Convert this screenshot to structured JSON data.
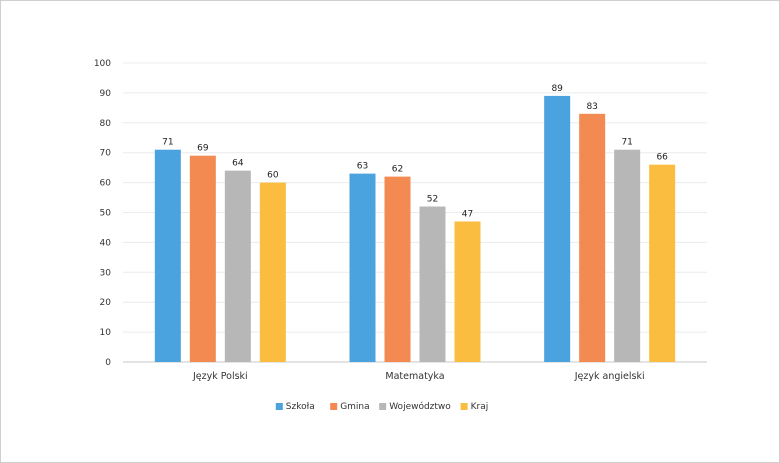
{
  "chart_data": {
    "type": "bar",
    "categories": [
      "Język Polski",
      "Matematyka",
      "Język angielski"
    ],
    "series": [
      {
        "name": "Szkoła",
        "values": [
          71,
          63,
          89
        ],
        "color": "#4aa3df"
      },
      {
        "name": "Gmina",
        "values": [
          69,
          62,
          83
        ],
        "color": "#f28a52"
      },
      {
        "name": "Województwo",
        "values": [
          64,
          52,
          71
        ],
        "color": "#b7b7b7"
      },
      {
        "name": "Kraj",
        "values": [
          60,
          47,
          66
        ],
        "color": "#fbbd3f"
      }
    ],
    "yticks": [
      "0",
      "10",
      "20",
      "30",
      "40",
      "50",
      "60",
      "70",
      "80",
      "90",
      "100"
    ],
    "ylim": [
      0,
      100
    ],
    "grid": true,
    "legend_position": "bottom",
    "title": "",
    "xlabel": "",
    "ylabel": ""
  }
}
